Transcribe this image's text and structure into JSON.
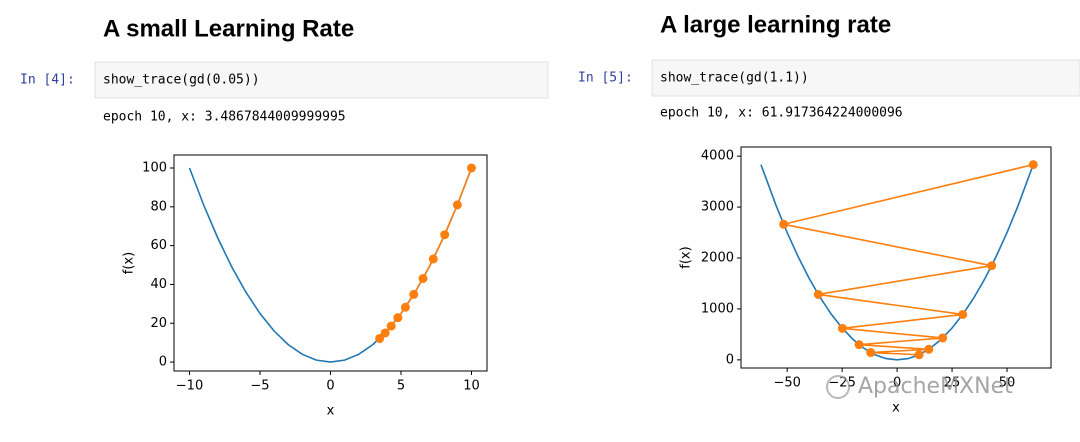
{
  "cells": [
    {
      "heading": "A small Learning Rate",
      "prompt": "In [4]:",
      "code": "show_trace(gd(0.05))",
      "output": "epoch 10, x: 3.4867844009999995"
    },
    {
      "heading": "A large learning rate",
      "prompt": "In [5]:",
      "code": "show_trace(gd(1.1))",
      "output": "epoch 10, x: 61.917364224000096"
    }
  ],
  "watermark": "ApacheMXNet",
  "chart_data": [
    {
      "type": "line",
      "x_label": "x",
      "y_label": "f(x)",
      "xlim": [
        -11.1,
        11.1
      ],
      "ylim": [
        -4.6,
        106.7
      ],
      "xticks": [
        {
          "value": -10,
          "label": "−10"
        },
        {
          "value": -5,
          "label": "−5"
        },
        0,
        5,
        10
      ],
      "yticks": [
        0,
        20,
        40,
        60,
        80,
        100
      ],
      "series": [
        {
          "color": "#1f77b4",
          "markers": false,
          "x": [
            -10,
            -9,
            -8,
            -7,
            -6,
            -5,
            -4,
            -3,
            -2,
            -1,
            0,
            1,
            2,
            3,
            4,
            5,
            6,
            7,
            8,
            9,
            10
          ],
          "values": [
            100,
            81,
            64,
            49,
            36,
            25,
            16,
            9,
            4,
            1,
            0,
            1,
            4,
            9,
            16,
            25,
            36,
            49,
            64,
            81,
            100
          ]
        },
        {
          "color": "#ff7f0e",
          "markers": true,
          "x": [
            10,
            9,
            8.1,
            7.29,
            6.561,
            5.9049,
            5.3144,
            4.783,
            4.3047,
            3.8742,
            3.4868
          ],
          "values": [
            100,
            81,
            65.61,
            53.14,
            43.05,
            34.87,
            28.24,
            22.88,
            18.53,
            15.01,
            12.16
          ]
        }
      ]
    },
    {
      "type": "line",
      "x_label": "x",
      "y_label": "f(x)",
      "xlim": [
        -71,
        70
      ],
      "ylim": [
        -160,
        4180
      ],
      "xticks": [
        {
          "value": -50,
          "label": "−50"
        },
        {
          "value": -25,
          "label": "−25"
        },
        0,
        25,
        50
      ],
      "yticks": [
        0,
        1000,
        2000,
        3000,
        4000
      ],
      "series": [
        {
          "color": "#1f77b4",
          "markers": false,
          "x": [
            -61.92,
            -55,
            -50,
            -45,
            -40,
            -35,
            -30,
            -25,
            -20,
            -15,
            -10,
            -5,
            0,
            5,
            10,
            15,
            20,
            25,
            30,
            35,
            40,
            45,
            50,
            55,
            61.92
          ],
          "values": [
            3834,
            3025,
            2500,
            2025,
            1600,
            1225,
            900,
            625,
            400,
            225,
            100,
            25,
            0,
            25,
            100,
            225,
            400,
            625,
            900,
            1225,
            1600,
            2025,
            2500,
            3025,
            3834
          ]
        },
        {
          "color": "#ff7f0e",
          "markers": true,
          "x": [
            10,
            -12,
            14.4,
            -17.28,
            20.736,
            -24.8832,
            29.8598,
            -35.8318,
            42.9982,
            -51.5978,
            61.9174
          ],
          "values": [
            100,
            144,
            207.36,
            298.6,
            429.98,
            619.17,
            891.61,
            1283.92,
            1848.84,
            2662.33,
            3833.76
          ]
        }
      ]
    }
  ]
}
